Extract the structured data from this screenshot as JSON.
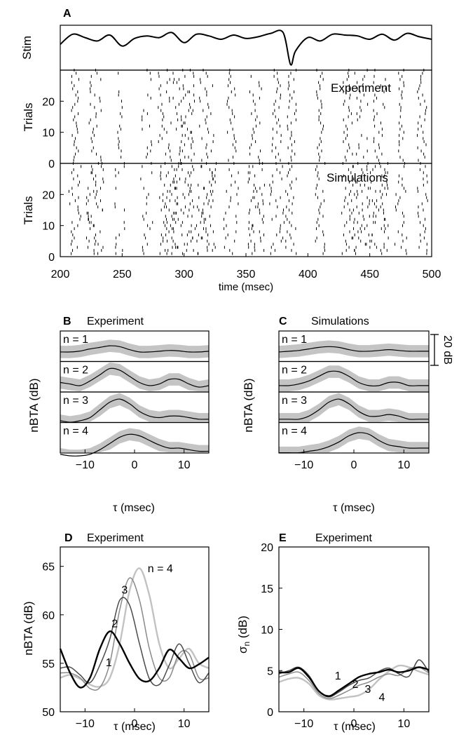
{
  "chart_data": [
    {
      "panel": "A",
      "type": "line",
      "ylabel": "Stim",
      "stimulus": {
        "x": [
          200,
          210,
          220,
          230,
          240,
          250,
          260,
          270,
          280,
          290,
          300,
          310,
          320,
          330,
          340,
          350,
          360,
          370,
          380,
          386,
          390,
          400,
          410,
          420,
          430,
          440,
          450,
          460,
          470,
          480,
          490,
          500
        ],
        "y": [
          0.2,
          0.8,
          0.6,
          0.4,
          0.75,
          0.1,
          0.55,
          0.7,
          0.6,
          0.9,
          0.3,
          0.8,
          0.7,
          0.5,
          0.75,
          0.55,
          0.65,
          0.85,
          0.9,
          -1.0,
          -0.2,
          0.6,
          0.4,
          0.8,
          0.75,
          0.7,
          0.5,
          0.8,
          0.45,
          0.85,
          0.65,
          0.5
        ]
      }
    },
    {
      "panel": "A",
      "type": "scatter",
      "ylabel": "Trials",
      "annotation": "Experiment",
      "ylim": [
        0,
        30
      ],
      "yticks": [
        0,
        10,
        20
      ],
      "trials": 30,
      "burst_centers_ms": [
        212,
        228,
        248,
        270,
        285,
        300,
        318,
        338,
        358,
        375,
        387,
        410,
        432,
        443,
        458,
        475,
        492
      ],
      "burst_widths_ms": [
        3,
        5,
        2,
        4,
        6,
        9,
        6,
        4,
        5,
        4,
        4,
        3,
        4,
        6,
        5,
        3,
        4
      ],
      "burst_density": [
        1,
        0.9,
        0.5,
        0.6,
        1,
        1,
        1,
        0.85,
        0.85,
        1,
        1,
        0.95,
        1,
        0.9,
        0.9,
        0.85,
        1
      ]
    },
    {
      "panel": "A",
      "type": "scatter",
      "ylabel": "Trials",
      "annotation": "Simulations",
      "ylim": [
        0,
        30
      ],
      "yticks": [
        0,
        10,
        20
      ],
      "trials": 30,
      "burst_centers_ms": [
        212,
        228,
        248,
        270,
        288,
        300,
        318,
        338,
        358,
        375,
        387,
        410,
        432,
        443,
        458,
        475,
        492
      ],
      "burst_widths_ms": [
        5,
        7,
        4,
        5,
        8,
        10,
        8,
        6,
        7,
        6,
        5,
        4,
        5,
        8,
        7,
        5,
        5
      ],
      "burst_density": [
        1,
        0.9,
        0.6,
        0.6,
        1,
        1,
        1,
        0.9,
        0.9,
        1,
        1,
        0.95,
        1,
        1,
        0.9,
        0.9,
        1
      ],
      "xlabel": "time (msec)",
      "xlim": [
        200,
        500
      ],
      "xticks": [
        200,
        250,
        300,
        350,
        400,
        450,
        500
      ]
    },
    {
      "panel": "B",
      "type": "area",
      "title": "Experiment",
      "ylabel": "nBTA (dB)",
      "xlabel": "τ (msec)",
      "xlim": [
        -15,
        15
      ],
      "xticks": [
        -10,
        0,
        10
      ],
      "tau": [
        -15,
        -13,
        -11,
        -9,
        -7,
        -5,
        -3,
        -1,
        1,
        3,
        5,
        7,
        9,
        11,
        13,
        15
      ],
      "rows": [
        {
          "label": "n = 1",
          "mean": [
            -1,
            -1,
            -0.4,
            1,
            2,
            3,
            2.5,
            0.5,
            -1,
            -1,
            -0.5,
            0,
            -0.3,
            -1,
            -1,
            -0.5
          ],
          "sd": [
            4,
            4,
            4,
            4,
            4,
            4,
            4,
            4,
            4,
            4,
            4,
            4,
            4,
            4,
            4,
            4
          ]
        },
        {
          "label": "n = 2",
          "mean": [
            -1,
            -2,
            -3,
            0,
            4,
            8,
            7,
            3,
            -1,
            -3,
            -2,
            1,
            1,
            -2,
            -4,
            -3
          ],
          "sd": [
            4,
            4,
            4,
            4,
            4,
            4,
            4,
            4,
            4,
            4,
            4,
            4,
            4,
            4,
            4,
            4
          ]
        },
        {
          "label": "n = 3",
          "mean": [
            -6,
            -7,
            -6,
            -4,
            1,
            6,
            8,
            5,
            0,
            -3,
            -4,
            -3,
            -3,
            -4,
            -5,
            -5
          ],
          "sd": [
            4,
            4,
            4,
            4,
            4,
            4,
            4,
            4,
            4,
            4,
            4,
            4,
            4,
            4,
            4,
            4
          ]
        },
        {
          "label": "n = 4",
          "mean": [
            -8,
            -9,
            -9,
            -8,
            -5,
            -1,
            3,
            5,
            4,
            1,
            -2,
            -4,
            -4,
            -5,
            -6,
            -6
          ],
          "sd": [
            4,
            4,
            4,
            4,
            4,
            4,
            4,
            4,
            4,
            4,
            4,
            4,
            4,
            4,
            4,
            4
          ]
        }
      ]
    },
    {
      "panel": "C",
      "type": "area",
      "title": "Simulations",
      "ylabel": "nBTA (dB)",
      "xlabel": "τ (msec)",
      "xlim": [
        -15,
        15
      ],
      "xticks": [
        -10,
        0,
        10
      ],
      "scalebar_label": "20 dB",
      "tau": [
        -15,
        -13,
        -11,
        -9,
        -7,
        -5,
        -3,
        -1,
        1,
        3,
        5,
        7,
        9,
        11,
        13,
        15
      ],
      "rows": [
        {
          "label": "n = 1",
          "mean": [
            -1,
            -0.5,
            0,
            1,
            2,
            2.5,
            2,
            0.5,
            -0.5,
            -0.5,
            0,
            0.5,
            0,
            -0.5,
            -0.5,
            -0.5
          ],
          "sd": [
            4,
            4,
            4,
            4,
            4,
            4,
            4,
            4,
            4,
            4,
            4,
            4,
            4,
            4,
            4,
            4
          ]
        },
        {
          "label": "n = 2",
          "mean": [
            -3,
            -3,
            -2,
            0,
            3,
            6,
            6,
            3,
            -1,
            -3,
            -3,
            -1,
            -1,
            -3,
            -3,
            -3
          ],
          "sd": [
            4,
            4,
            4,
            4,
            4,
            4,
            4,
            4,
            4,
            4,
            4,
            4,
            4,
            4,
            4,
            4
          ]
        },
        {
          "label": "n = 3",
          "mean": [
            -5,
            -5,
            -5,
            -3,
            1,
            6,
            8,
            5,
            0,
            -3,
            -3,
            -2,
            -3,
            -5,
            -5,
            -5
          ],
          "sd": [
            4,
            4,
            4,
            4,
            4,
            4,
            4,
            4,
            4,
            4,
            4,
            4,
            4,
            4,
            4,
            4
          ]
        },
        {
          "label": "n = 4",
          "mean": [
            -7,
            -7,
            -7,
            -6,
            -5,
            -3,
            0,
            4,
            6,
            5,
            1,
            -2,
            -3,
            -4,
            -4,
            -4
          ],
          "sd": [
            4,
            4,
            4,
            4,
            4,
            4,
            4,
            4,
            4,
            4,
            4,
            4,
            4,
            4,
            4,
            4
          ]
        }
      ]
    },
    {
      "panel": "D",
      "type": "line",
      "title": "Experiment",
      "ylabel": "nBTA (dB)",
      "xlabel": "τ (msec)",
      "xlim": [
        -15,
        15
      ],
      "ylim": [
        50,
        67
      ],
      "xticks": [
        -10,
        0,
        10
      ],
      "yticks": [
        50,
        55,
        60,
        65
      ],
      "x": [
        -15,
        -13,
        -11,
        -9,
        -7,
        -5,
        -3,
        -1,
        1,
        3,
        5,
        7,
        9,
        11,
        13,
        15
      ],
      "series": [
        {
          "label": "1",
          "color": "#000000",
          "width": 2.4,
          "y": [
            56.5,
            54,
            52.5,
            53.5,
            56.5,
            58.3,
            57,
            55,
            53.4,
            53.2,
            54.5,
            56.4,
            55.5,
            54.5,
            54.9,
            55.6
          ]
        },
        {
          "label": "2",
          "color": "#4a4a4a",
          "width": 1.5,
          "y": [
            54.5,
            54.6,
            53.8,
            53,
            54.8,
            57.5,
            61.5,
            61,
            57,
            53.4,
            52.8,
            54.8,
            57,
            55,
            53,
            54
          ]
        },
        {
          "label": "3",
          "color": "#8a8a8a",
          "width": 1.5,
          "y": [
            54,
            54,
            53.5,
            52.4,
            52.5,
            55,
            60.5,
            63.8,
            61.5,
            56.5,
            53.5,
            53.5,
            56,
            56,
            53.5,
            53.5
          ]
        },
        {
          "label": "n = 4",
          "color": "#c2c2c2",
          "width": 2.4,
          "y": [
            53.5,
            53.8,
            53.4,
            52.8,
            52.6,
            53.5,
            57,
            62.5,
            64.8,
            62,
            57,
            54.5,
            55.5,
            56.5,
            55,
            54.5
          ]
        }
      ]
    },
    {
      "panel": "E",
      "type": "line",
      "title": "Experiment",
      "ylabel": "σn (dB)",
      "xlabel": "τ (msec)",
      "xlim": [
        -15,
        15
      ],
      "ylim": [
        0,
        20
      ],
      "xticks": [
        -10,
        0,
        10
      ],
      "yticks": [
        0,
        5,
        10,
        15,
        20
      ],
      "x": [
        -15,
        -13,
        -11,
        -9,
        -7,
        -5,
        -3,
        -1,
        1,
        3,
        5,
        7,
        9,
        11,
        13,
        15
      ],
      "series": [
        {
          "label": "1",
          "color": "#000000",
          "width": 2.4,
          "y": [
            4.8,
            4.8,
            5.3,
            4.2,
            2.5,
            1.9,
            2.6,
            3.4,
            4.2,
            4.6,
            4.8,
            5.1,
            4.8,
            5,
            5.4,
            5.1
          ]
        },
        {
          "label": "2",
          "color": "#4a4a4a",
          "width": 1.5,
          "y": [
            4.6,
            5,
            5.4,
            4.4,
            2.5,
            1.8,
            2.4,
            3.2,
            3.8,
            4.1,
            4.9,
            5.3,
            4.6,
            4.3,
            6.3,
            4.8
          ]
        },
        {
          "label": "3",
          "color": "#8a8a8a",
          "width": 1.5,
          "y": [
            4.2,
            4.6,
            4.8,
            3.8,
            2.2,
            1.6,
            2.0,
            2.6,
            3.2,
            3.6,
            4.2,
            4.6,
            4.4,
            5.2,
            5.4,
            4.7
          ]
        },
        {
          "label": "4",
          "color": "#c2c2c2",
          "width": 2.4,
          "y": [
            3.6,
            4.0,
            4.1,
            3.4,
            2.0,
            1.5,
            1.6,
            1.8,
            2.0,
            2.7,
            3.9,
            4.9,
            5.6,
            5.4,
            4.9,
            4.5
          ]
        }
      ]
    }
  ]
}
